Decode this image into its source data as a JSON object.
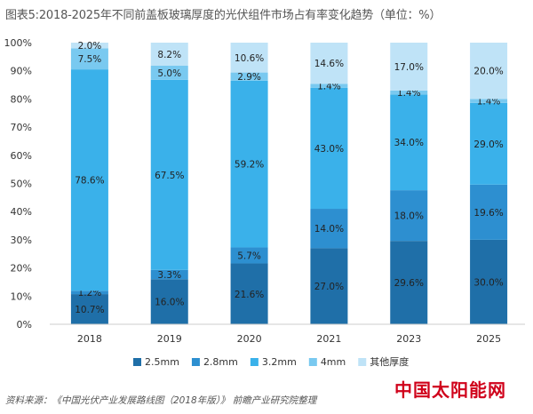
{
  "title": "图表5:2018-2025年不同前盖板玻璃厚度的光伏组件市场占有率变化趋势（单位：%）",
  "source": "资料来源：《中国光伏产业发展路线图（2018年版）》 前瞻产业研究院整理",
  "brand": "中国太阳能网",
  "chart_data": {
    "type": "bar",
    "stacked": true,
    "categories": [
      "2018",
      "2019",
      "2020",
      "2021",
      "2023",
      "2025"
    ],
    "series": [
      {
        "name": "2.5mm",
        "color": "#1f6fa8",
        "values": [
          10.7,
          16.0,
          21.6,
          27.0,
          29.6,
          30.0
        ],
        "labels": [
          "10.7%",
          "16.0%",
          "21.6%",
          "27.0%",
          "29.6%",
          "30.0%"
        ]
      },
      {
        "name": "2.8mm",
        "color": "#2d8fd0",
        "values": [
          1.2,
          3.3,
          5.7,
          14.0,
          18.0,
          19.6
        ],
        "labels": [
          "1.2%",
          "3.3%",
          "5.7%",
          "14.0%",
          "18.0%",
          "19.6%"
        ]
      },
      {
        "name": "3.2mm",
        "color": "#3ab1ea",
        "values": [
          78.6,
          67.5,
          59.2,
          43.0,
          34.0,
          29.0
        ],
        "labels": [
          "78.6%",
          "67.5%",
          "59.2%",
          "43.0%",
          "34.0%",
          "29.0%"
        ]
      },
      {
        "name": "4mm",
        "color": "#79c9f0",
        "values": [
          7.5,
          5.0,
          2.9,
          1.4,
          1.4,
          1.4
        ],
        "labels": [
          "7.5%",
          "5.0%",
          "2.9%",
          "1.4%",
          "1.4%",
          "1.4%"
        ]
      },
      {
        "name": "其他厚度",
        "color": "#bfe3f7",
        "values": [
          2.0,
          8.2,
          10.6,
          14.6,
          17.0,
          20.0
        ],
        "labels": [
          "2.0%",
          "8.2%",
          "10.6%",
          "14.6%",
          "17.0%",
          "20.0%"
        ]
      }
    ],
    "ylim": [
      0,
      100
    ],
    "yticks": [
      "0%",
      "10%",
      "20%",
      "30%",
      "40%",
      "50%",
      "60%",
      "70%",
      "80%",
      "90%",
      "100%"
    ],
    "grid": false,
    "legend_position": "bottom"
  }
}
